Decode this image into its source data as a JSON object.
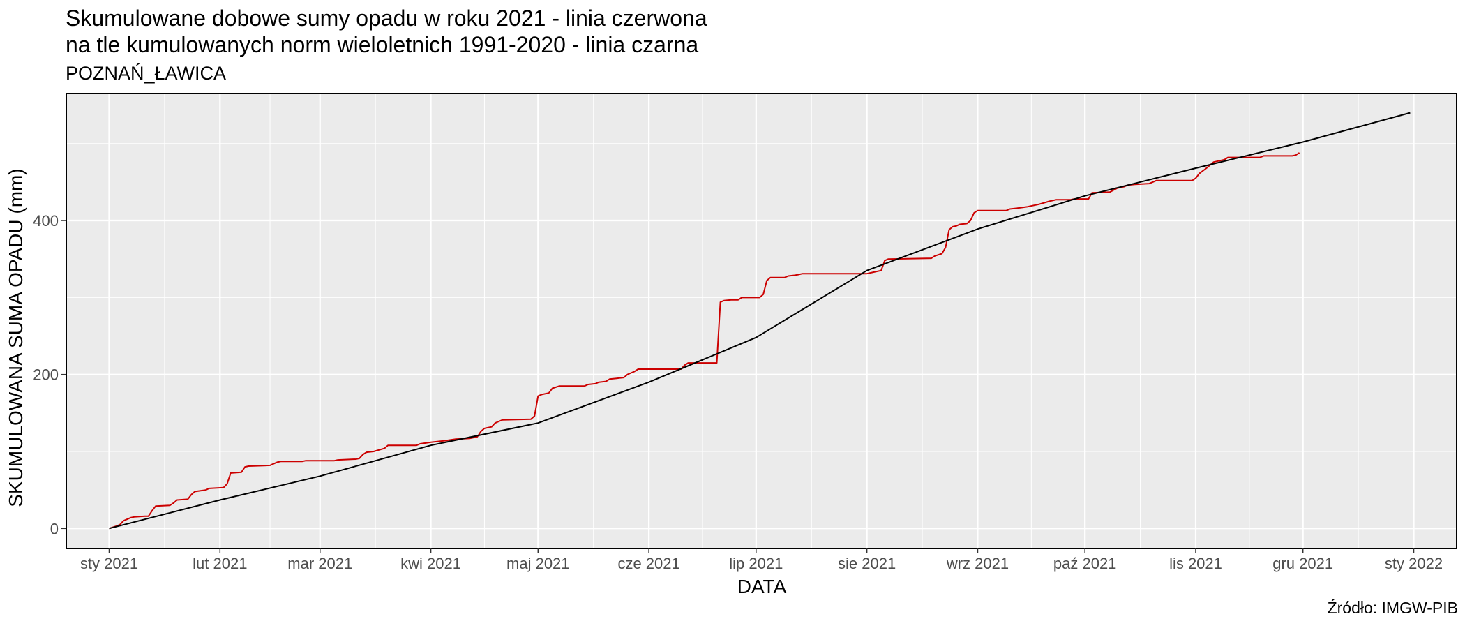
{
  "header": {
    "title_line1": "Skumulowane dobowe sumy opadu w roku 2021 - linia czerwona",
    "title_line2": "na tle kumulowanych norm wieloletnich 1991-2020 - linia czarna",
    "subtitle": "POZNAŃ_ŁAWICA"
  },
  "footer": {
    "source": "Źródło: IMGW-PIB"
  },
  "colors": {
    "panel": "#ebebeb",
    "grid": "#ffffff",
    "actual": "#cc0000",
    "norm": "#000000"
  },
  "chart_data": {
    "type": "line",
    "title": "Skumulowane dobowe sumy opadu w roku 2021 - linia czerwona na tle kumulowanych norm wieloletnich 1991-2020 - linia czarna",
    "subtitle": "POZNAŃ_ŁAWICA",
    "xlabel": "DATA",
    "ylabel": "SKUMULOWANA SUMA OPADU (mm)",
    "xlim": [
      "2020-12-20",
      "2022-01-13"
    ],
    "ylim": [
      -26,
      565
    ],
    "x_ticks": [
      {
        "date": "2021-01-01",
        "label": "sty 2021"
      },
      {
        "date": "2021-02-01",
        "label": "lut 2021"
      },
      {
        "date": "2021-03-01",
        "label": "mar 2021"
      },
      {
        "date": "2021-04-01",
        "label": "kwi 2021"
      },
      {
        "date": "2021-05-01",
        "label": "maj 2021"
      },
      {
        "date": "2021-06-01",
        "label": "cze 2021"
      },
      {
        "date": "2021-07-01",
        "label": "lip 2021"
      },
      {
        "date": "2021-08-01",
        "label": "sie 2021"
      },
      {
        "date": "2021-09-01",
        "label": "wrz 2021"
      },
      {
        "date": "2021-10-01",
        "label": "paź 2021"
      },
      {
        "date": "2021-11-01",
        "label": "lis 2021"
      },
      {
        "date": "2021-12-01",
        "label": "gru 2021"
      },
      {
        "date": "2022-01-01",
        "label": "sty 2022"
      }
    ],
    "y_ticks": [
      0,
      200,
      400
    ],
    "grid": true,
    "legend": "none",
    "series": [
      {
        "color": "#cc0000",
        "points": [
          [
            "2021-01-01",
            0
          ],
          [
            "2021-01-03",
            3
          ],
          [
            "2021-01-04",
            5
          ],
          [
            "2021-01-05",
            10
          ],
          [
            "2021-01-07",
            14
          ],
          [
            "2021-01-08",
            15
          ],
          [
            "2021-01-11",
            16
          ],
          [
            "2021-01-12",
            16
          ],
          [
            "2021-01-13",
            23
          ],
          [
            "2021-01-14",
            29
          ],
          [
            "2021-01-18",
            30
          ],
          [
            "2021-01-19",
            33
          ],
          [
            "2021-01-20",
            37
          ],
          [
            "2021-01-23",
            38
          ],
          [
            "2021-01-24",
            44
          ],
          [
            "2021-01-25",
            48
          ],
          [
            "2021-01-28",
            50
          ],
          [
            "2021-01-29",
            52
          ],
          [
            "2021-02-02",
            53
          ],
          [
            "2021-02-03",
            58
          ],
          [
            "2021-02-04",
            72
          ],
          [
            "2021-02-07",
            73
          ],
          [
            "2021-02-08",
            80
          ],
          [
            "2021-02-09",
            81
          ],
          [
            "2021-02-15",
            82
          ],
          [
            "2021-02-16",
            84
          ],
          [
            "2021-02-17",
            86
          ],
          [
            "2021-02-18",
            87
          ],
          [
            "2021-02-24",
            87
          ],
          [
            "2021-02-25",
            88
          ],
          [
            "2021-03-05",
            88
          ],
          [
            "2021-03-06",
            89
          ],
          [
            "2021-03-11",
            90
          ],
          [
            "2021-03-12",
            91
          ],
          [
            "2021-03-13",
            96
          ],
          [
            "2021-03-14",
            99
          ],
          [
            "2021-03-16",
            100
          ],
          [
            "2021-03-19",
            104
          ],
          [
            "2021-03-20",
            108
          ],
          [
            "2021-03-28",
            108
          ],
          [
            "2021-03-29",
            110
          ],
          [
            "2021-04-01",
            112
          ],
          [
            "2021-04-05",
            114
          ],
          [
            "2021-04-08",
            116
          ],
          [
            "2021-04-12",
            117
          ],
          [
            "2021-04-14",
            119
          ],
          [
            "2021-04-15",
            126
          ],
          [
            "2021-04-16",
            130
          ],
          [
            "2021-04-18",
            132
          ],
          [
            "2021-04-19",
            137
          ],
          [
            "2021-04-20",
            139
          ],
          [
            "2021-04-21",
            141
          ],
          [
            "2021-04-29",
            142
          ],
          [
            "2021-04-30",
            146
          ],
          [
            "2021-05-01",
            172
          ],
          [
            "2021-05-02",
            174
          ],
          [
            "2021-05-04",
            176
          ],
          [
            "2021-05-05",
            182
          ],
          [
            "2021-05-07",
            185
          ],
          [
            "2021-05-14",
            185
          ],
          [
            "2021-05-15",
            187
          ],
          [
            "2021-05-17",
            188
          ],
          [
            "2021-05-18",
            190
          ],
          [
            "2021-05-20",
            191
          ],
          [
            "2021-05-21",
            194
          ],
          [
            "2021-05-23",
            195
          ],
          [
            "2021-05-25",
            196
          ],
          [
            "2021-05-26",
            200
          ],
          [
            "2021-05-27",
            202
          ],
          [
            "2021-05-28",
            204
          ],
          [
            "2021-05-29",
            207
          ],
          [
            "2021-06-10",
            207
          ],
          [
            "2021-06-11",
            212
          ],
          [
            "2021-06-12",
            215
          ],
          [
            "2021-06-20",
            215
          ],
          [
            "2021-06-21",
            294
          ],
          [
            "2021-06-22",
            296
          ],
          [
            "2021-06-24",
            297
          ],
          [
            "2021-06-26",
            297
          ],
          [
            "2021-06-27",
            300
          ],
          [
            "2021-07-02",
            300
          ],
          [
            "2021-07-03",
            304
          ],
          [
            "2021-07-04",
            322
          ],
          [
            "2021-07-05",
            326
          ],
          [
            "2021-07-09",
            326
          ],
          [
            "2021-07-10",
            328
          ],
          [
            "2021-07-12",
            329
          ],
          [
            "2021-07-14",
            331
          ],
          [
            "2021-08-01",
            331
          ],
          [
            "2021-08-03",
            333
          ],
          [
            "2021-08-05",
            335
          ],
          [
            "2021-08-06",
            348
          ],
          [
            "2021-08-07",
            350
          ],
          [
            "2021-08-19",
            351
          ],
          [
            "2021-08-20",
            354
          ],
          [
            "2021-08-22",
            357
          ],
          [
            "2021-08-23",
            365
          ],
          [
            "2021-08-24",
            388
          ],
          [
            "2021-08-25",
            392
          ],
          [
            "2021-08-26",
            393
          ],
          [
            "2021-08-27",
            395
          ],
          [
            "2021-08-29",
            396
          ],
          [
            "2021-08-30",
            400
          ],
          [
            "2021-08-31",
            410
          ],
          [
            "2021-09-01",
            413
          ],
          [
            "2021-09-09",
            413
          ],
          [
            "2021-09-10",
            415
          ],
          [
            "2021-09-12",
            416
          ],
          [
            "2021-09-15",
            418
          ],
          [
            "2021-09-18",
            421
          ],
          [
            "2021-09-21",
            425
          ],
          [
            "2021-09-23",
            427
          ],
          [
            "2021-09-27",
            427
          ],
          [
            "2021-09-28",
            428
          ],
          [
            "2021-10-02",
            428
          ],
          [
            "2021-10-03",
            436
          ],
          [
            "2021-10-08",
            437
          ],
          [
            "2021-10-10",
            442
          ],
          [
            "2021-10-12",
            444
          ],
          [
            "2021-10-13",
            446
          ],
          [
            "2021-10-15",
            447
          ],
          [
            "2021-10-19",
            448
          ],
          [
            "2021-10-20",
            450
          ],
          [
            "2021-10-21",
            452
          ],
          [
            "2021-10-31",
            452
          ],
          [
            "2021-11-01",
            455
          ],
          [
            "2021-11-02",
            461
          ],
          [
            "2021-11-04",
            468
          ],
          [
            "2021-11-06",
            476
          ],
          [
            "2021-11-09",
            479
          ],
          [
            "2021-11-10",
            482
          ],
          [
            "2021-11-19",
            482
          ],
          [
            "2021-11-20",
            484
          ],
          [
            "2021-11-28",
            484
          ],
          [
            "2021-11-29",
            485
          ],
          [
            "2021-11-30",
            488
          ]
        ]
      },
      {
        "color": "#000000",
        "points": [
          [
            "2021-01-01",
            0
          ],
          [
            "2021-02-01",
            37
          ],
          [
            "2021-03-01",
            68
          ],
          [
            "2021-04-01",
            108
          ],
          [
            "2021-05-01",
            137
          ],
          [
            "2021-06-01",
            190
          ],
          [
            "2021-07-01",
            248
          ],
          [
            "2021-08-01",
            335
          ],
          [
            "2021-09-01",
            389
          ],
          [
            "2021-10-01",
            432
          ],
          [
            "2021-11-01",
            468
          ],
          [
            "2021-12-01",
            502
          ],
          [
            "2021-12-31",
            540
          ]
        ]
      }
    ]
  }
}
